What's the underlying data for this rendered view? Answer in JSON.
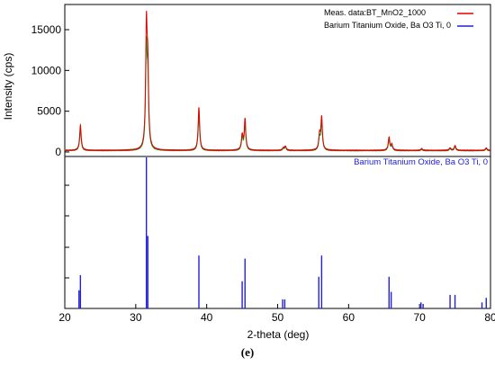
{
  "caption": "(e)",
  "chart_data": [
    {
      "type": "line",
      "ylabel": "Intensity (cps)",
      "xlabel": "2-theta (deg)",
      "xlim": [
        20,
        80
      ],
      "ylim": [
        -1000,
        16500
      ],
      "x_ticks": [
        "20",
        "30",
        "40",
        "50",
        "60",
        "70",
        "80"
      ],
      "y_ticks": [
        "0",
        "5000",
        "10000",
        "15000"
      ],
      "legend_position": "top-right",
      "grid": false,
      "series": [
        {
          "name": "Meas. data:BT_MnO2_1000",
          "color": "#e00000",
          "baseline": 200,
          "peaks": [
            {
              "x": 22.2,
              "y": 3300
            },
            {
              "x": 31.5,
              "y": 14600
            },
            {
              "x": 31.7,
              "y": 9000
            },
            {
              "x": 38.9,
              "y": 5500
            },
            {
              "x": 45.0,
              "y": 2000
            },
            {
              "x": 45.4,
              "y": 4000
            },
            {
              "x": 50.8,
              "y": 500
            },
            {
              "x": 51.1,
              "y": 700
            },
            {
              "x": 55.9,
              "y": 2000
            },
            {
              "x": 56.2,
              "y": 4200
            },
            {
              "x": 65.7,
              "y": 1800
            },
            {
              "x": 66.1,
              "y": 900
            },
            {
              "x": 70.3,
              "y": 400
            },
            {
              "x": 74.3,
              "y": 500
            },
            {
              "x": 75.0,
              "y": 800
            },
            {
              "x": 79.4,
              "y": 500
            }
          ]
        },
        {
          "name": "Barium Titanium Oxide, Ba O3 Ti, 0",
          "color": "#2020e0",
          "reference_sticks": [
            {
              "x": 22.0,
              "intensity": 12
            },
            {
              "x": 22.2,
              "intensity": 22
            },
            {
              "x": 31.5,
              "intensity": 100
            },
            {
              "x": 31.7,
              "intensity": 48
            },
            {
              "x": 38.9,
              "intensity": 35
            },
            {
              "x": 45.0,
              "intensity": 18
            },
            {
              "x": 45.4,
              "intensity": 33
            },
            {
              "x": 50.7,
              "intensity": 6
            },
            {
              "x": 51.0,
              "intensity": 6
            },
            {
              "x": 55.8,
              "intensity": 21
            },
            {
              "x": 56.2,
              "intensity": 35
            },
            {
              "x": 65.7,
              "intensity": 21
            },
            {
              "x": 66.0,
              "intensity": 11
            },
            {
              "x": 70.2,
              "intensity": 4
            },
            {
              "x": 70.5,
              "intensity": 3
            },
            {
              "x": 74.3,
              "intensity": 9
            },
            {
              "x": 75.0,
              "intensity": 9
            },
            {
              "x": 78.8,
              "intensity": 4
            },
            {
              "x": 79.4,
              "intensity": 7
            }
          ]
        }
      ],
      "fitted_series_color": "#1a9a1a",
      "reference_label": "Barium Titanium Oxide, Ba O3 Ti, 0"
    }
  ]
}
